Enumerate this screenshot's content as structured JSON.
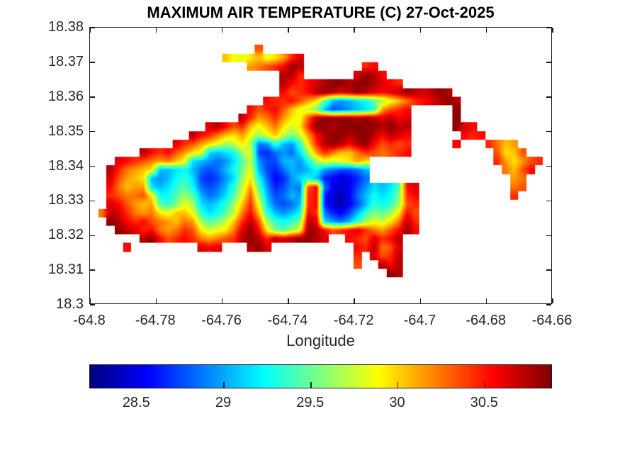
{
  "title": "MAXIMUM AIR TEMPERATURE (C) 27-Oct-2025",
  "axes": {
    "xlabel": "Longitude",
    "xlim": [
      -64.8,
      -64.66
    ],
    "ylim": [
      18.3,
      18.38
    ],
    "x_ticks": [
      {
        "value": -64.8,
        "label": "-64.8"
      },
      {
        "value": -64.78,
        "label": "-64.78"
      },
      {
        "value": -64.76,
        "label": "-64.76"
      },
      {
        "value": -64.74,
        "label": "-64.74"
      },
      {
        "value": -64.72,
        "label": "-64.72"
      },
      {
        "value": -64.7,
        "label": "-64.7"
      },
      {
        "value": -64.68,
        "label": "-64.68"
      },
      {
        "value": -64.66,
        "label": "-64.66"
      }
    ],
    "y_ticks": [
      {
        "value": 18.38,
        "label": "18.38"
      },
      {
        "value": 18.37,
        "label": "18.37"
      },
      {
        "value": 18.36,
        "label": "18.36"
      },
      {
        "value": 18.35,
        "label": "18.35"
      },
      {
        "value": 18.34,
        "label": "18.34"
      },
      {
        "value": 18.33,
        "label": "18.33"
      },
      {
        "value": 18.32,
        "label": "18.32"
      },
      {
        "value": 18.31,
        "label": "18.31"
      },
      {
        "value": 18.3,
        "label": "18.3"
      }
    ]
  },
  "colorbar": {
    "orientation": "horizontal",
    "colormap": "jet",
    "range": [
      28.23,
      30.89
    ],
    "ticks": [
      {
        "value": 28.5,
        "label": "28.5"
      },
      {
        "value": 29,
        "label": "29"
      },
      {
        "value": 29.5,
        "label": "29.5"
      },
      {
        "value": 30,
        "label": "30"
      },
      {
        "value": 30.5,
        "label": "30.5"
      }
    ]
  },
  "chart_data": {
    "type": "heatmap",
    "title": "MAXIMUM AIR TEMPERATURE (C) 27-Oct-2025",
    "xlabel": "Longitude",
    "units": "C",
    "colormap": "jet",
    "caxis": [
      28.23,
      30.89
    ],
    "lon_range": [
      -64.8,
      -64.66
    ],
    "lat_range": [
      18.3,
      18.38
    ],
    "grid_cols": 56,
    "grid_rows": 32,
    "cell_deg": 0.0025,
    "encoding": {
      "water_char": ".",
      "palette_chars": "0123456789abcdefghijklmnopq",
      "palette_base": 28.25,
      "palette_step": 0.1
    },
    "grid": [
      "........................................................",
      "........................................................",
      "....................l...................................",
      "................igghighjmo..............................",
      "...................jklmnqp.......mn.....................",
      ".......................ppm......oqpn....................",
      ".......................pnmnopqqpqqponm..................",
      ".......................nlmnpqpopqponopqpopqp............",
      ".....................nmmnljhc8789acegikmnopqp...........",
      "...................nlmnligfd856789bjlmn.....q...........",
      "..................pmjkmjhglpqqqqpqpopno.....q...........",
      "..............opnlmigikhfhmqqpqqqqqpqpp.....qon.........",
      "............pnmkihjgegifdfjnpqqpqqpnpon......nmn........",
      "..........omljhgefhe67b87bhmpqpnpqnlmlm.....n...mkij....",
      "......pnmnljhg989aeg546769ejmkiikmlklmn..........lhil...",
      "...onmlkjkig987679cf755887aegfghjh...............mjhjlm.",
      "..pmkjih889a86568adg8546878a765568................kiln..",
      "..oljih878ab954579eha63479a8432346.................jk...",
      "..nkijj989bca6568bfjc74576ln632357989cno...........kl...",
      "..mlkklhaacec8679cgle85687mn421368a9admn...........m....",
      "..onljijcbdge989beimg96568mn421358babelm................",
      ".kpomkjkhgiigb9acfknib878anm64358bdcehnl................",
      "..qpnmnlkjikjecdfimplebabdpo9768begfhkpm................",
      "...qpomnkjkmlhfghkoqnhdcegqpnlmnomkjlnqn................",
      "......pqnlmnmkjklmpqpmpopqqpo..nmlomnp..................",
      "....n........ono...pqo..........nmpklo..................",
      "................................m.olmp..................",
      "................................l..pnp..................",
      "....................................qp..................",
      "........................................................",
      "........................................................",
      "........................................................"
    ]
  }
}
